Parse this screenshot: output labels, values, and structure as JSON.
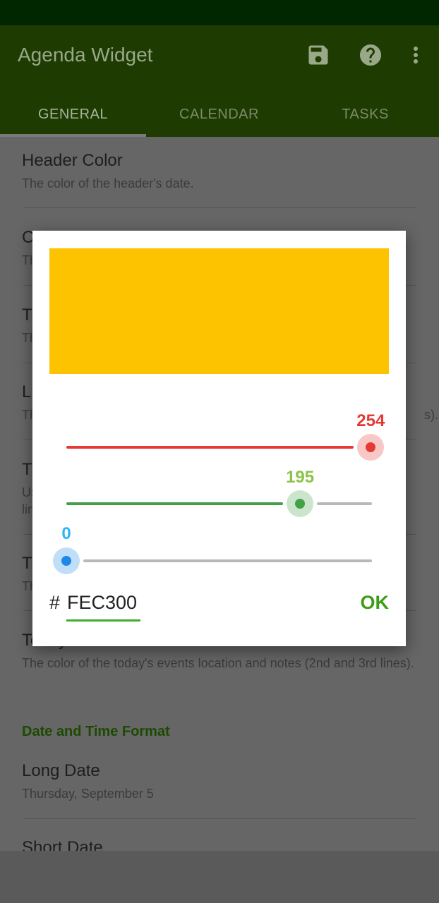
{
  "app_bar": {
    "title": "Agenda Widget",
    "actions": [
      "save-icon",
      "help-icon",
      "more-vert-icon"
    ]
  },
  "tabs": [
    {
      "label": "GENERAL",
      "active": true
    },
    {
      "label": "CALENDAR",
      "active": false
    },
    {
      "label": "TASKS",
      "active": false
    }
  ],
  "settings": {
    "header_color": {
      "title": "Header Color",
      "summary": "The color of the header's date."
    },
    "partial_items": [
      {
        "title": "C",
        "summary": "Th"
      },
      {
        "title": "T",
        "summary": "Th"
      },
      {
        "title": "L",
        "summary": "Th",
        "tail": "s)."
      },
      {
        "title": "T",
        "summary_lines": [
          "Us",
          "lin"
        ]
      },
      {
        "title": "T",
        "summary": "Th"
      }
    ],
    "today_location": {
      "title": "Today's Location and Notes Color",
      "summary": "The color of the today's events location and notes (2nd and 3rd lines)."
    },
    "section_date_time": "Date and Time Format",
    "long_date": {
      "title": "Long Date",
      "summary": "Thursday, September 5"
    },
    "short_date": {
      "title": "Short Date"
    }
  },
  "color_dialog": {
    "preview_color": "#FEC300",
    "red": {
      "value": 254,
      "label": "254",
      "max": 255,
      "color": "#e53935"
    },
    "green": {
      "value": 195,
      "label": "195",
      "max": 255,
      "color": "#43a047",
      "label_color": "#8bc34a"
    },
    "blue": {
      "value": 0,
      "label": "0",
      "max": 255,
      "color": "#1e88e5",
      "label_color": "#29b6f6"
    },
    "hash_symbol": "#",
    "hex_value": "FEC300",
    "ok_label": "OK"
  }
}
